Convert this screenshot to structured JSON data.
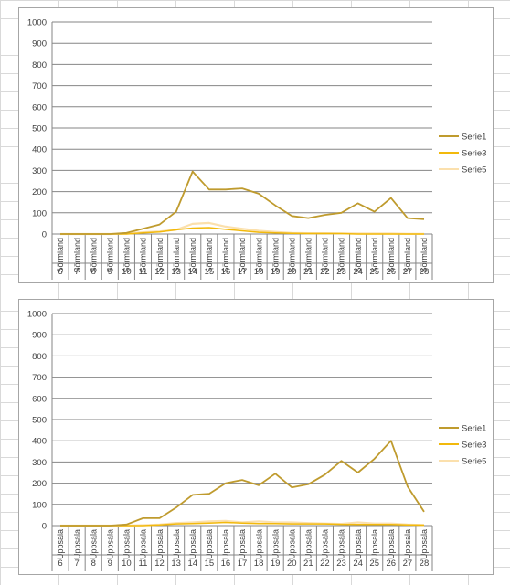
{
  "colors": {
    "serie1": "#bf9b2e",
    "serie3": "#f2b90c",
    "serie5": "#fbe0ad",
    "grid": "#868686",
    "axis": "#868686"
  },
  "chart_data": [
    {
      "type": "line",
      "title": "",
      "ylim": [
        0,
        1000
      ],
      "yticks": [
        "0",
        "100",
        "200",
        "300",
        "400",
        "500",
        "600",
        "700",
        "800",
        "900",
        "1000"
      ],
      "region": "Sörmland",
      "categories": [
        "6",
        "7",
        "8",
        "9",
        "10",
        "11",
        "12",
        "13",
        "14",
        "15",
        "16",
        "17",
        "18",
        "19",
        "20",
        "21",
        "22",
        "23",
        "24",
        "25",
        "26",
        "27",
        "28"
      ],
      "series": [
        {
          "name": "Serie1",
          "values": [
            0,
            0,
            0,
            0,
            5,
            25,
            45,
            105,
            295,
            210,
            210,
            215,
            190,
            135,
            85,
            75,
            90,
            100,
            145,
            105,
            170,
            75,
            70
          ]
        },
        {
          "name": "Serie3",
          "values": [
            0,
            0,
            0,
            0,
            0,
            5,
            10,
            20,
            28,
            30,
            22,
            15,
            8,
            5,
            3,
            2,
            2,
            2,
            0,
            0,
            0,
            0,
            0
          ]
        },
        {
          "name": "Serie5",
          "values": [
            0,
            0,
            0,
            0,
            2,
            8,
            12,
            20,
            48,
            52,
            35,
            25,
            15,
            10,
            5,
            4,
            4,
            3,
            2,
            2,
            2,
            1,
            1
          ]
        }
      ],
      "legend_position": "right"
    },
    {
      "type": "line",
      "title": "",
      "ylim": [
        0,
        1000
      ],
      "yticks": [
        "0",
        "100",
        "200",
        "300",
        "400",
        "500",
        "600",
        "700",
        "800",
        "900",
        "1000"
      ],
      "region": "Uppsala",
      "categories": [
        "6",
        "7",
        "8",
        "9",
        "10",
        "11",
        "12",
        "13",
        "14",
        "15",
        "16",
        "17",
        "18",
        "19",
        "20",
        "21",
        "22",
        "23",
        "24",
        "25",
        "26",
        "27",
        "28"
      ],
      "series": [
        {
          "name": "Serie1",
          "values": [
            0,
            0,
            0,
            0,
            5,
            35,
            35,
            85,
            145,
            150,
            200,
            215,
            190,
            245,
            180,
            195,
            240,
            305,
            250,
            315,
            400,
            185,
            65
          ]
        },
        {
          "name": "Serie3",
          "values": [
            0,
            0,
            0,
            0,
            0,
            0,
            3,
            8,
            10,
            12,
            15,
            12,
            10,
            10,
            8,
            8,
            8,
            6,
            5,
            5,
            5,
            3,
            2
          ]
        },
        {
          "name": "Serie5",
          "values": [
            0,
            0,
            0,
            0,
            0,
            2,
            5,
            12,
            15,
            20,
            22,
            15,
            20,
            15,
            15,
            12,
            10,
            8,
            15,
            10,
            10,
            5,
            3
          ]
        }
      ],
      "legend_position": "right"
    }
  ]
}
